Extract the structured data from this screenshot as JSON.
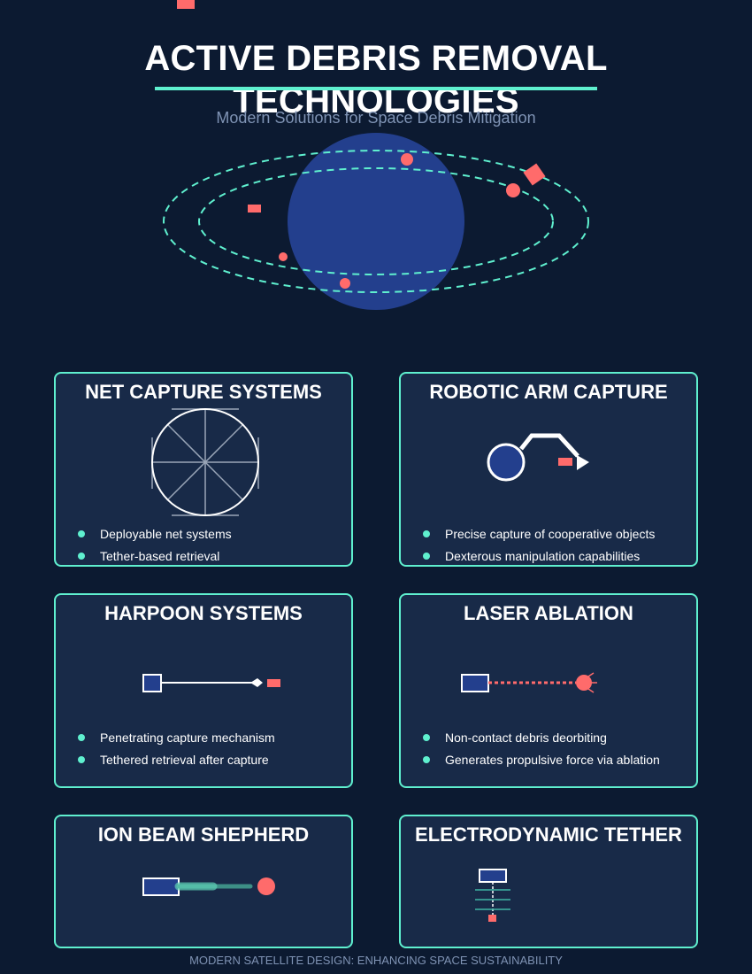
{
  "header": {
    "title": "ACTIVE DEBRIS REMOVAL TECHNOLOGIES",
    "subtitle": "Modern Solutions for Space Debris Mitigation"
  },
  "colors": {
    "background": "#0c1a31",
    "card_background": "#182a48",
    "accent_teal": "#5ff0cf",
    "debris_red": "#ff6b6b",
    "earth_blue": "#233f8d",
    "text_muted": "#7f93b4"
  },
  "hero": {
    "icon": "earth-with-orbits-illustration"
  },
  "cards": [
    {
      "title": "NET CAPTURE SYSTEMS",
      "icon": "net-icon",
      "bullets": [
        "Deployable net systems",
        "Tether-based retrieval"
      ]
    },
    {
      "title": "ROBOTIC ARM CAPTURE",
      "icon": "robotic-arm-icon",
      "bullets": [
        "Precise capture of cooperative objects",
        "Dexterous manipulation capabilities"
      ]
    },
    {
      "title": "HARPOON SYSTEMS",
      "icon": "harpoon-icon",
      "bullets": [
        "Penetrating capture mechanism",
        "Tethered retrieval after capture"
      ]
    },
    {
      "title": "LASER ABLATION",
      "icon": "laser-icon",
      "bullets": [
        "Non-contact debris deorbiting",
        "Generates propulsive force via ablation"
      ]
    },
    {
      "title": "ION BEAM SHEPHERD",
      "icon": "ion-beam-icon",
      "bullets": []
    },
    {
      "title": "ELECTRODYNAMIC TETHER",
      "icon": "tether-icon",
      "bullets": []
    }
  ],
  "footer": {
    "text": "MODERN SATELLITE DESIGN: ENHANCING SPACE SUSTAINABILITY"
  }
}
